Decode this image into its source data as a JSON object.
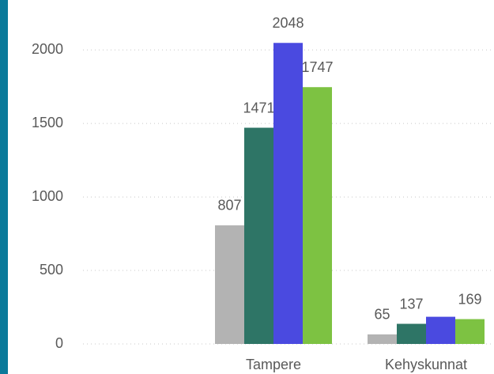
{
  "chart_data": {
    "type": "bar",
    "categories": [
      null,
      "Tampere",
      "Kehyskunnat"
    ],
    "series": [
      {
        "name": null,
        "color": "#b3b3b3",
        "values": [
          null,
          807,
          65
        ],
        "value_labels": [
          null,
          "807",
          "65"
        ]
      },
      {
        "name": null,
        "color": "#2e7566",
        "values": [
          null,
          1471,
          137
        ],
        "value_labels": [
          null,
          "1471",
          "137"
        ]
      },
      {
        "name": null,
        "color": "#4a4ae0",
        "values": [
          null,
          2048,
          185
        ],
        "value_labels": [
          null,
          "2048",
          null
        ]
      },
      {
        "name": null,
        "color": "#7dc242",
        "values": [
          null,
          1747,
          169
        ],
        "value_labels": [
          null,
          "1747",
          "169"
        ]
      }
    ],
    "ylim": [
      0,
      2200
    ],
    "yticks": [
      0,
      500,
      1000,
      1500,
      2000
    ],
    "grid": true
  }
}
